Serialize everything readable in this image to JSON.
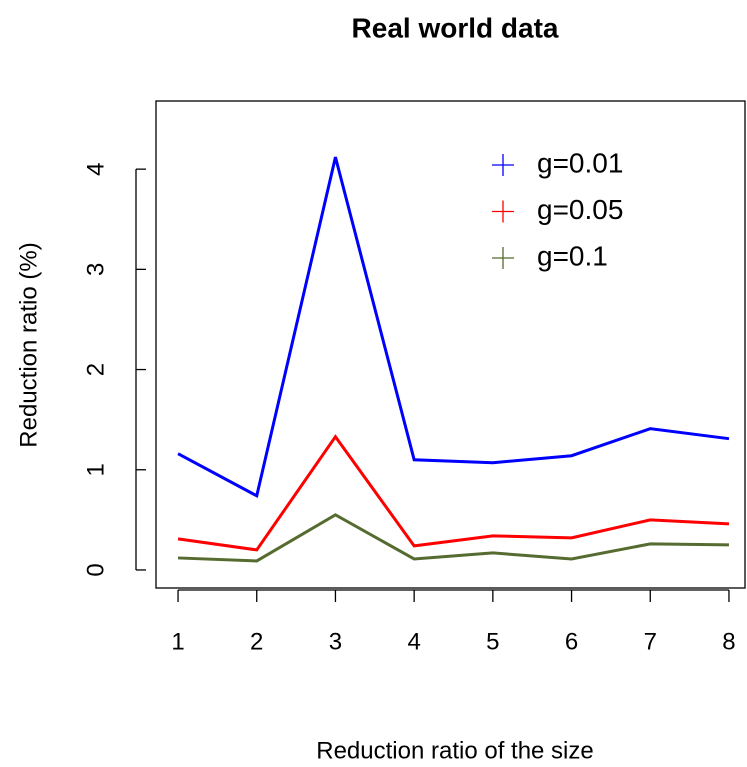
{
  "chart_data": {
    "type": "line",
    "title": "Real world data",
    "x_label": "Reduction ratio of the size",
    "y_label": "Reduction ratio (%)",
    "x": [
      1,
      2,
      3,
      4,
      5,
      6,
      7,
      8
    ],
    "series": [
      {
        "name": "g=0.01",
        "color": "#0000ff",
        "values": [
          1.16,
          0.74,
          4.12,
          1.1,
          1.07,
          1.14,
          1.41,
          1.31
        ]
      },
      {
        "name": "g=0.05",
        "color": "#ff0000",
        "values": [
          0.31,
          0.2,
          1.33,
          0.24,
          0.34,
          0.32,
          0.5,
          0.46
        ]
      },
      {
        "name": "g=0.1",
        "color": "#556b2f",
        "values": [
          0.12,
          0.09,
          0.55,
          0.11,
          0.17,
          0.11,
          0.26,
          0.25
        ]
      }
    ],
    "xlim": [
      0.72,
      8.28
    ],
    "ylim": [
      -0.18,
      4.68
    ],
    "xticks": [
      1,
      2,
      3,
      4,
      5,
      6,
      7,
      8
    ],
    "yticks": [
      0,
      1,
      2,
      3,
      4
    ],
    "legend": "top-right"
  }
}
